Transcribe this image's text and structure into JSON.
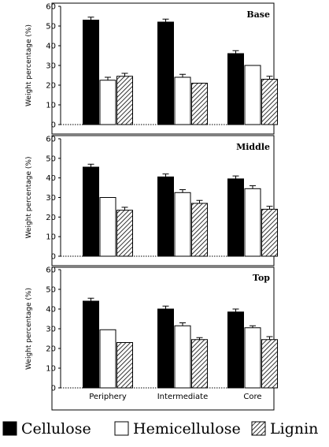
{
  "chart_data": {
    "type": "bar",
    "ylabel": "Weight percentage (%)",
    "ylim": [
      0,
      60
    ],
    "yticks": [
      0,
      10,
      20,
      30,
      40,
      50,
      60
    ],
    "categories": [
      "Periphery",
      "Intermediate",
      "Core"
    ],
    "legend_position": "bottom",
    "series_styles": [
      {
        "name": "Cellulose",
        "fill": "#000000",
        "pattern": "solid"
      },
      {
        "name": "Hemicellulose",
        "fill": "#ffffff",
        "pattern": "none"
      },
      {
        "name": "Lignin",
        "fill": "#ffffff",
        "pattern": "diagonal-hatch"
      }
    ],
    "panels": [
      {
        "title": "Base",
        "series": [
          {
            "name": "Cellulose",
            "values": [
              53,
              52,
              36
            ],
            "errors": [
              1.5,
              1.5,
              1.5
            ]
          },
          {
            "name": "Hemicellulose",
            "values": [
              22.5,
              24,
              30
            ],
            "errors": [
              1.5,
              1.5,
              0
            ]
          },
          {
            "name": "Lignin",
            "values": [
              24.5,
              21,
              23
            ],
            "errors": [
              1.5,
              0,
              1.5
            ]
          }
        ]
      },
      {
        "title": "Middle",
        "series": [
          {
            "name": "Cellulose",
            "values": [
              45.5,
              40.5,
              39.5
            ],
            "errors": [
              1.5,
              1.5,
              1.5
            ]
          },
          {
            "name": "Hemicellulose",
            "values": [
              30,
              32.5,
              34.5
            ],
            "errors": [
              0,
              1.5,
              1.5
            ]
          },
          {
            "name": "Lignin",
            "values": [
              23.5,
              27,
              24
            ],
            "errors": [
              1.5,
              1.5,
              1.5
            ]
          }
        ]
      },
      {
        "title": "Top",
        "series": [
          {
            "name": "Cellulose",
            "values": [
              44,
              40,
              38.5
            ],
            "errors": [
              1.5,
              1.5,
              1.5
            ]
          },
          {
            "name": "Hemicellulose",
            "values": [
              29.5,
              31.5,
              30.5
            ],
            "errors": [
              0,
              1.5,
              1
            ]
          },
          {
            "name": "Lignin",
            "values": [
              23,
              24.5,
              24.5
            ],
            "errors": [
              0,
              1,
              1.5
            ]
          }
        ]
      }
    ]
  }
}
